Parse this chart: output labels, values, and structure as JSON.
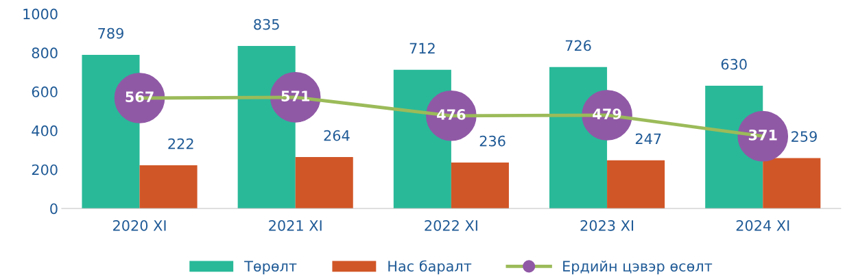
{
  "chart_data": {
    "type": "bar",
    "categories": [
      "2020 XI",
      "2021 XI",
      "2022 XI",
      "2023 XI",
      "2024 XI"
    ],
    "series": [
      {
        "name": "Төрөлт",
        "color": "#29b999",
        "values": [
          789,
          835,
          712,
          726,
          630
        ],
        "value_labels": [
          "789",
          "835",
          "712",
          "726",
          "630"
        ]
      },
      {
        "name": "Нас баралт",
        "color": "#d15627",
        "values": [
          222,
          264,
          236,
          247,
          259
        ],
        "value_labels": [
          "222",
          "264",
          "236",
          "247",
          "259"
        ]
      },
      {
        "name": "Ердийн цэвэр өсөлт",
        "type": "line",
        "color": "#9bbb59",
        "marker": "none",
        "values": [
          567,
          571,
          476,
          479,
          371
        ]
      },
      {
        "type": "scatter",
        "color": "#9059a6",
        "values": [
          567,
          571,
          476,
          479,
          371
        ],
        "value_labels": [
          "567",
          "571",
          "476",
          "479",
          "371"
        ]
      }
    ],
    "ylim": [
      0,
      1000
    ],
    "yticks": [
      0,
      200,
      400,
      600,
      800,
      1000
    ],
    "grid": false,
    "legend": "bottom",
    "marker": "circle",
    "line_style": "solid"
  }
}
